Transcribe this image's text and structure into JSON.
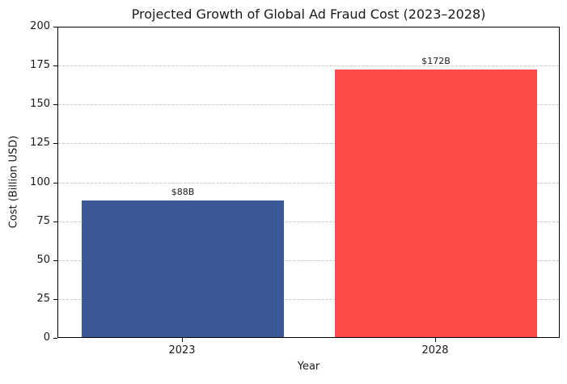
{
  "chart_data": {
    "type": "bar",
    "title": "Projected Growth of Global Ad Fraud Cost (2023–2028)",
    "xlabel": "Year",
    "ylabel": "Cost (Billion USD)",
    "categories": [
      "2023",
      "2028"
    ],
    "values": [
      88,
      172
    ],
    "data_labels": [
      "$88B",
      "$172B"
    ],
    "colors": [
      "#3b5998",
      "#ff4a4a"
    ],
    "ylim": [
      0,
      200
    ],
    "yticks": [
      0,
      25,
      50,
      75,
      100,
      125,
      150,
      175,
      200
    ],
    "grid": {
      "axis": "y",
      "style": "dashed",
      "color": "#c8c8c8"
    },
    "legend": null
  },
  "labels": {
    "title": "Projected Growth of Global Ad Fraud Cost (2023–2028)",
    "xlabel": "Year",
    "ylabel": "Cost (Billion USD)",
    "yticks": [
      "0",
      "25",
      "50",
      "75",
      "100",
      "125",
      "150",
      "175",
      "200"
    ],
    "xticks": [
      "2023",
      "2028"
    ],
    "bar_labels": [
      "$88B",
      "$172B"
    ]
  }
}
